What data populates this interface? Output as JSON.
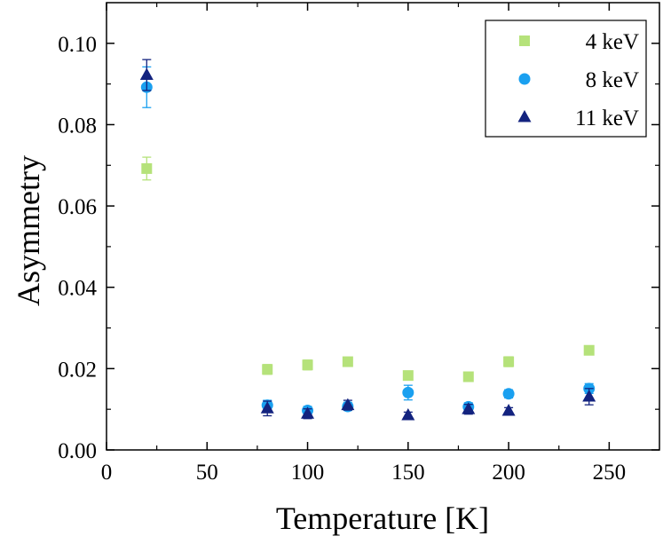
{
  "chart_data": {
    "type": "scatter",
    "title": "",
    "xlabel": "Temperature [K]",
    "ylabel": "Asymmetry",
    "xlim": [
      0,
      275
    ],
    "ylim": [
      0.0,
      0.11
    ],
    "xticks": [
      0,
      50,
      100,
      150,
      200,
      250
    ],
    "xtick_labels": [
      "0",
      "50",
      "100",
      "150",
      "200",
      "250"
    ],
    "yticks": [
      0.0,
      0.02,
      0.04,
      0.06,
      0.08,
      0.1
    ],
    "ytick_labels": [
      "0.00",
      "0.02",
      "0.04",
      "0.06",
      "0.08",
      "0.10"
    ],
    "grid": false,
    "legend_position": "top-right",
    "series": [
      {
        "name": "4 keV",
        "marker": "square",
        "color": "#b5e27a",
        "points": [
          {
            "x": 20,
            "y": 0.0692,
            "err": 0.0028
          },
          {
            "x": 80,
            "y": 0.0198,
            "err": 0.0012
          },
          {
            "x": 100,
            "y": 0.0209,
            "err": 0.0012
          },
          {
            "x": 120,
            "y": 0.0217,
            "err": 0.001
          },
          {
            "x": 150,
            "y": 0.0183,
            "err": 0.001
          },
          {
            "x": 180,
            "y": 0.018,
            "err": 0.001
          },
          {
            "x": 200,
            "y": 0.0217,
            "err": 0.0012
          },
          {
            "x": 240,
            "y": 0.0245,
            "err": 0.001
          }
        ]
      },
      {
        "name": "8 keV",
        "marker": "circle",
        "color": "#1aa0f0",
        "points": [
          {
            "x": 20,
            "y": 0.0892,
            "err": 0.005
          },
          {
            "x": 80,
            "y": 0.011,
            "err": 0.0012
          },
          {
            "x": 100,
            "y": 0.0097,
            "err": 0.001
          },
          {
            "x": 120,
            "y": 0.0107,
            "err": 0.001
          },
          {
            "x": 150,
            "y": 0.0141,
            "err": 0.0018
          },
          {
            "x": 180,
            "y": 0.0106,
            "err": 0.001
          },
          {
            "x": 200,
            "y": 0.0138,
            "err": 0.001
          },
          {
            "x": 240,
            "y": 0.0151,
            "err": 0.0012
          }
        ]
      },
      {
        "name": "11 keV",
        "marker": "triangle",
        "color": "#13237f",
        "points": [
          {
            "x": 20,
            "y": 0.0922,
            "err": 0.0038
          },
          {
            "x": 80,
            "y": 0.0102,
            "err": 0.0018
          },
          {
            "x": 100,
            "y": 0.0089,
            "err": 0.0012
          },
          {
            "x": 120,
            "y": 0.011,
            "err": 0.0012
          },
          {
            "x": 150,
            "y": 0.0085,
            "err": 0.0008
          },
          {
            "x": 180,
            "y": 0.01,
            "err": 0.0012
          },
          {
            "x": 200,
            "y": 0.0096,
            "err": 0.0008
          },
          {
            "x": 240,
            "y": 0.0131,
            "err": 0.002
          }
        ]
      }
    ]
  }
}
